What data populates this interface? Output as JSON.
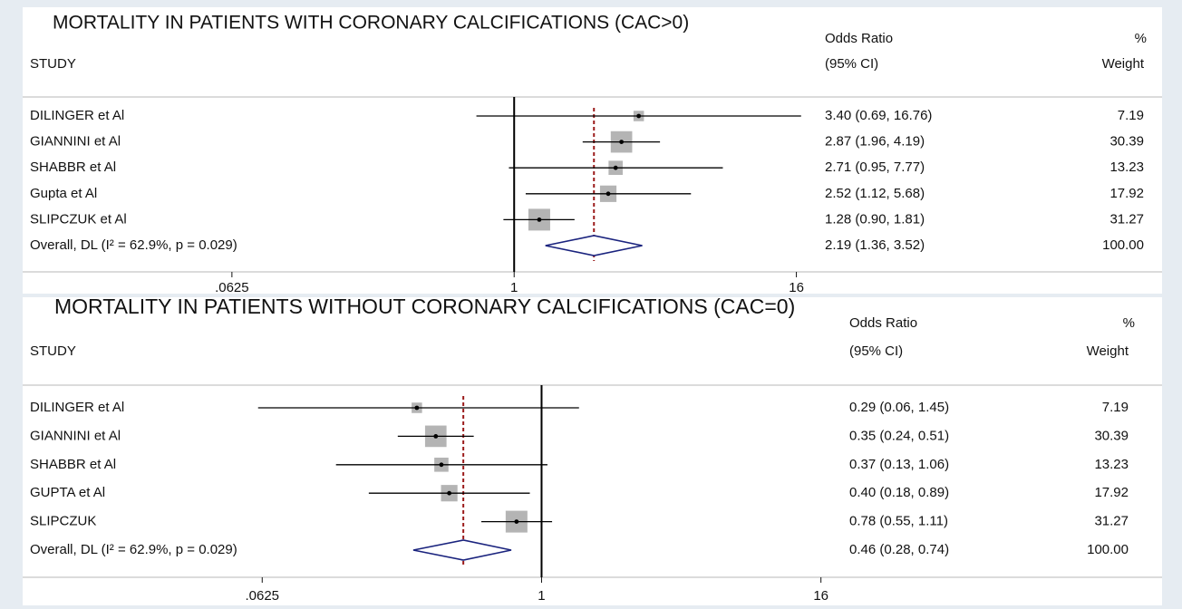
{
  "chart_data": [
    {
      "type": "forest",
      "title": "MORTALITY IN PATIENTS WITH CORONARY CALCIFICATIONS (CAC>0)",
      "headers": {
        "study": "STUDY",
        "estimate": "Odds Ratio",
        "ci": "(95% CI)",
        "pct": "%",
        "weight": "Weight"
      },
      "categories": [
        "DILINGER et Al",
        "GIANNINI et Al",
        "SHABBR et Al",
        "Gupta et Al",
        "SLIPCZUK et Al"
      ],
      "values": [
        3.4,
        2.87,
        2.71,
        2.52,
        1.28
      ],
      "ci_lower": [
        0.69,
        1.96,
        0.95,
        1.12,
        0.9
      ],
      "ci_upper": [
        16.76,
        4.19,
        7.77,
        5.68,
        1.81
      ],
      "value_labels": [
        "3.40 (0.69, 16.76)",
        "2.87 (1.96, 4.19)",
        "2.71 (0.95, 7.77)",
        "2.52 (1.12, 5.68)",
        "1.28 (0.90, 1.81)"
      ],
      "weights": [
        7.19,
        30.39,
        13.23,
        17.92,
        31.27
      ],
      "weight_labels": [
        "7.19",
        "30.39",
        "13.23",
        "17.92",
        "31.27"
      ],
      "overall": {
        "label": "Overall, DL (I² = 62.9%, p = 0.029)",
        "value": 2.19,
        "ci_lower": 1.36,
        "ci_upper": 3.52,
        "value_label": "2.19 (1.36, 3.52)",
        "weight": 100,
        "weight_label": "100.00"
      },
      "log_scale": true,
      "xlim": [
        0.008,
        17.4
      ],
      "xticks": [
        {
          "value": 0.0625,
          "label": ".0625"
        },
        1,
        16
      ],
      "reference_line": 1,
      "box_color": "#b4b4b4",
      "diamond_color": "#1a237e",
      "overall_line_color": "#9b1b1b"
    },
    {
      "type": "forest",
      "title": "MORTALITY IN PATIENTS WITHOUT CORONARY CALCIFICATIONS (CAC=0)",
      "headers": {
        "study": "STUDY",
        "estimate": "Odds Ratio",
        "ci": "(95% CI)",
        "pct": "%",
        "weight": "Weight"
      },
      "categories": [
        "DILINGER et Al",
        "GIANNINI et Al",
        "SHABBR et Al",
        "GUPTA et Al",
        "SLIPCZUK"
      ],
      "values": [
        0.29,
        0.35,
        0.37,
        0.4,
        0.78
      ],
      "ci_lower": [
        0.06,
        0.24,
        0.13,
        0.18,
        0.55
      ],
      "ci_upper": [
        1.45,
        0.51,
        1.06,
        0.89,
        1.11
      ],
      "value_labels": [
        "0.29 (0.06, 1.45)",
        "0.35 (0.24, 0.51)",
        "0.37 (0.13, 1.06)",
        "0.40 (0.18, 0.89)",
        "0.78 (0.55, 1.11)"
      ],
      "weights": [
        7.19,
        30.39,
        13.23,
        17.92,
        31.27
      ],
      "weight_labels": [
        "7.19",
        "30.39",
        "13.23",
        "17.92",
        "31.27"
      ],
      "overall": {
        "label": "Overall, DL (I² = 62.9%, p = 0.029)",
        "value": 0.46,
        "ci_lower": 0.28,
        "ci_upper": 0.74,
        "value_label": "0.46 (0.28, 0.74)",
        "weight": 100,
        "weight_label": "100.00"
      },
      "log_scale": true,
      "xlim": [
        0.0058,
        17.4
      ],
      "xticks": [
        {
          "value": 0.0625,
          "label": ".0625"
        },
        1,
        16
      ],
      "reference_line": 1,
      "box_color": "#b4b4b4",
      "diamond_color": "#1a237e",
      "overall_line_color": "#9b1b1b"
    }
  ]
}
